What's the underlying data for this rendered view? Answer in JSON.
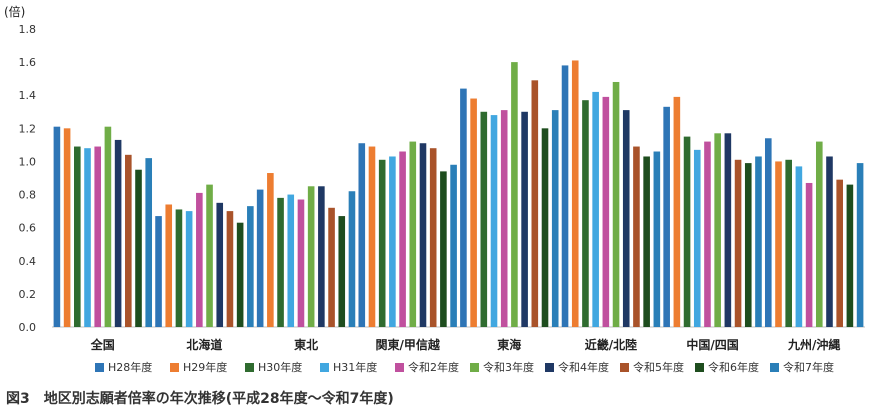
{
  "chart_data": {
    "type": "bar",
    "unit_label": "(倍)",
    "caption": "図3　地区別志願者倍率の年次推移(平成28年度～令和7年度)",
    "ylim": [
      0,
      1.8
    ],
    "yticks": [
      "0.0",
      "0.2",
      "0.4",
      "0.6",
      "0.8",
      "1.0",
      "1.2",
      "1.4",
      "1.6",
      "1.8"
    ],
    "grid": false,
    "legend_position": "bottom",
    "categories": [
      "全国",
      "北海道",
      "東北",
      "関東/甲信越",
      "東海",
      "近畿/北陸",
      "中国/四国",
      "九州/沖縄"
    ],
    "series": [
      {
        "name": "H28年度",
        "color": "#2e75b6",
        "values": [
          1.21,
          0.67,
          0.83,
          1.11,
          1.44,
          1.58,
          1.33,
          1.14
        ]
      },
      {
        "name": "H29年度",
        "color": "#ed7d31",
        "values": [
          1.2,
          0.74,
          0.93,
          1.09,
          1.38,
          1.61,
          1.39,
          1.0
        ]
      },
      {
        "name": "H30年度",
        "color": "#2f6b2f",
        "values": [
          1.09,
          0.71,
          0.78,
          1.01,
          1.3,
          1.37,
          1.15,
          1.01
        ]
      },
      {
        "name": "H31年度",
        "color": "#41a7e0",
        "values": [
          1.08,
          0.7,
          0.8,
          1.03,
          1.28,
          1.42,
          1.07,
          0.97
        ]
      },
      {
        "name": "令和2年度",
        "color": "#c0509e",
        "values": [
          1.09,
          0.81,
          0.77,
          1.06,
          1.31,
          1.39,
          1.12,
          0.87
        ]
      },
      {
        "name": "令和3年度",
        "color": "#70ad47",
        "values": [
          1.21,
          0.86,
          0.85,
          1.12,
          1.6,
          1.48,
          1.17,
          1.12
        ]
      },
      {
        "name": "令和4年度",
        "color": "#1f3864",
        "values": [
          1.13,
          0.75,
          0.85,
          1.11,
          1.3,
          1.31,
          1.17,
          1.03
        ]
      },
      {
        "name": "令和5年度",
        "color": "#a9532a",
        "values": [
          1.04,
          0.7,
          0.72,
          1.08,
          1.49,
          1.09,
          1.01,
          0.89
        ]
      },
      {
        "name": "令和6年度",
        "color": "#1e4d1e",
        "values": [
          0.95,
          0.63,
          0.67,
          0.94,
          1.2,
          1.03,
          0.99,
          0.86
        ]
      },
      {
        "name": "令和7年度",
        "color": "#2a7fb8",
        "values": [
          1.02,
          0.73,
          0.82,
          0.98,
          1.31,
          1.06,
          1.03,
          0.99
        ]
      }
    ]
  }
}
